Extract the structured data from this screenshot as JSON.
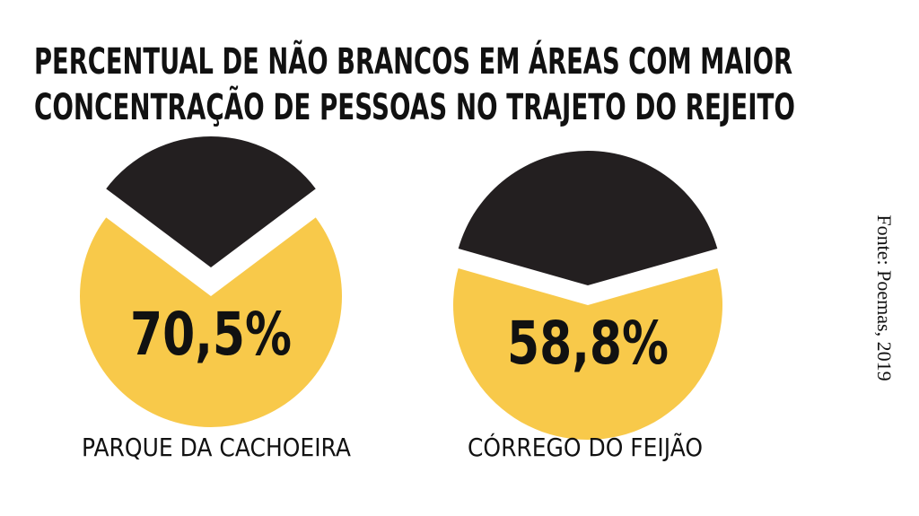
{
  "title": [
    "PERCENTUAL DE NÃO BRANCOS EM ÁREAS COM MAIOR",
    "CONCENTRAÇÃO DE PESSOAS NO TRAJETO DO REJEITO"
  ],
  "source": "Fonte: Poemas, 2019",
  "chart_data": [
    {
      "type": "pie",
      "label": "PARQUE DA CACHOEIRA",
      "values": [
        70.5,
        29.5
      ],
      "value_labels": [
        "70,5%",
        null
      ],
      "colors": [
        "#f8c94a",
        "#231f20"
      ]
    },
    {
      "type": "pie",
      "label": "CÓRREGO DO FEIJÃO",
      "values": [
        58.8,
        41.2
      ],
      "value_labels": [
        "58,8%",
        null
      ],
      "colors": [
        "#f8c94a",
        "#231f20"
      ]
    }
  ]
}
